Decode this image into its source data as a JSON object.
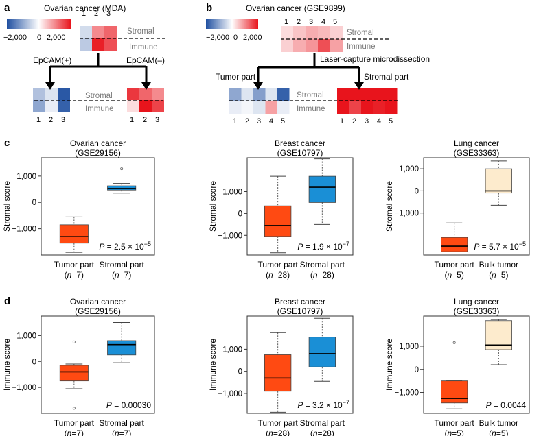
{
  "panel_labels": {
    "a": "a",
    "b": "b",
    "c": "c",
    "d": "d"
  },
  "colors": {
    "blue": "#1f4fa0",
    "red": "#e8141c",
    "white": "#ffffff",
    "orange": "#ff4a12",
    "sky": "#1a8fd6",
    "cream": "#fdebcd"
  },
  "colorbar": {
    "ticks": [
      "−2,000",
      "0",
      "2,000"
    ],
    "ticks_b": [
      "−2,000",
      "0",
      "2,000"
    ]
  },
  "panel_a": {
    "title": "Ovarian cancer (MDA)",
    "row_labels": [
      "Stromal",
      "Immune"
    ],
    "left_label": "EpCAM(+)",
    "right_label": "EpCAM(–)",
    "samples": [
      "1",
      "2",
      "3"
    ],
    "top_stromal": [
      -400,
      1000,
      1300
    ],
    "top_immune": [
      -600,
      1900,
      1500
    ],
    "left_stromal": [
      -700,
      -300,
      -1900
    ],
    "left_immune": [
      -1000,
      -200,
      -1800
    ],
    "right_stromal": [
      1700,
      1300,
      1000
    ],
    "right_immune": [
      300,
      2000,
      1600
    ]
  },
  "panel_b": {
    "title": "Ovarian cancer (GSE9899)",
    "row_labels": [
      "Stromal",
      "Immune"
    ],
    "process_label": "Laser-capture microdissection",
    "left_label": "Tumor part",
    "right_label": "Stromal part",
    "samples": [
      "1",
      "2",
      "3",
      "4",
      "5"
    ],
    "top_stromal": [
      300,
      500,
      700,
      600,
      400
    ],
    "top_immune": [
      400,
      700,
      900,
      1500,
      800
    ],
    "left_stromal": [
      -1000,
      -300,
      -1100,
      -300,
      -1800
    ],
    "left_immune": [
      -200,
      -100,
      -300,
      800,
      -200
    ],
    "right_stromal": [
      2200,
      2200,
      2200,
      2200,
      2200
    ],
    "right_immune": [
      2000,
      1600,
      2000,
      1900,
      2000
    ]
  },
  "chart_data": [
    {
      "type": "box",
      "panel": "c",
      "title": "Ovarian cancer",
      "subtitle": "(GSE29156)",
      "ylabel": "Stromal score",
      "ylim": [
        -2000,
        1700
      ],
      "yticks": [
        "1,000",
        "0",
        "−1,000"
      ],
      "ytick_values": [
        1000,
        0,
        -1000
      ],
      "categories": [
        "Tumor part",
        "Stromal part"
      ],
      "n_labels": [
        "7",
        "7"
      ],
      "p_prefix": "P = ",
      "p_value": "2.5 × 10",
      "p_exp": "−5",
      "boxes": [
        {
          "min": -1900,
          "q1": -1550,
          "median": -1300,
          "q3": -850,
          "max": -550,
          "color": "#ff4a12",
          "outliers": []
        },
        {
          "min": 350,
          "q1": 470,
          "median": 530,
          "q3": 630,
          "max": 720,
          "color": "#1a8fd6",
          "outliers": [
            1280
          ]
        }
      ]
    },
    {
      "type": "box",
      "panel": "c",
      "title": "Breast cancer",
      "subtitle": "(GSE10797)",
      "ylabel": "Stromal score",
      "ylim": [
        -1900,
        2550
      ],
      "yticks": [
        "1,000",
        "0",
        "−1,000"
      ],
      "ytick_values": [
        1000,
        0,
        -1000
      ],
      "categories": [
        "Tumor part",
        "Stromal part"
      ],
      "n_labels": [
        "28",
        "28"
      ],
      "p_prefix": "P = ",
      "p_value": "1.9 × 10",
      "p_exp": "−7",
      "boxes": [
        {
          "min": -1800,
          "q1": -1050,
          "median": -550,
          "q3": 350,
          "max": 1700,
          "color": "#ff4a12",
          "outliers": []
        },
        {
          "min": -500,
          "q1": 500,
          "median": 1200,
          "q3": 1700,
          "max": 2500,
          "color": "#1a8fd6",
          "outliers": []
        }
      ]
    },
    {
      "type": "box",
      "panel": "c",
      "title": "Lung cancer",
      "subtitle": "(GSE33363)",
      "ylabel": "Stromal score",
      "ylim": [
        -2900,
        1500
      ],
      "yticks": [
        "1,000",
        "0",
        "−1,000"
      ],
      "ytick_values": [
        1000,
        0,
        -1000
      ],
      "categories": [
        "Tumor part",
        "Bulk tumor"
      ],
      "n_labels": [
        "5",
        "5"
      ],
      "p_prefix": "P = ",
      "p_value": "5.7 × 10",
      "p_exp": "−5",
      "boxes": [
        {
          "min": -2750,
          "q1": -2750,
          "median": -2500,
          "q3": -2100,
          "max": -1450,
          "color": "#ff4a12",
          "outliers": []
        },
        {
          "min": -650,
          "q1": -100,
          "median": 0,
          "q3": 1000,
          "max": 1350,
          "color": "#fdebcd",
          "outliers": []
        }
      ]
    },
    {
      "type": "box",
      "panel": "d",
      "title": "Ovarian cancer",
      "subtitle": "(GSE29156)",
      "ylabel": "Immune score",
      "ylim": [
        -2000,
        1750
      ],
      "yticks": [
        "1,000",
        "0",
        "−1,000"
      ],
      "ytick_values": [
        1000,
        0,
        -1000
      ],
      "categories": [
        "Tumor part",
        "Stromal part"
      ],
      "n_labels": [
        "7",
        "7"
      ],
      "p_prefix": "P = ",
      "p_value": "0.00030",
      "p_exp": "",
      "boxes": [
        {
          "min": -1050,
          "q1": -750,
          "median": -400,
          "q3": -150,
          "max": -100,
          "color": "#ff4a12",
          "outliers": [
            750,
            -1800
          ]
        },
        {
          "min": -50,
          "q1": 250,
          "median": 650,
          "q3": 800,
          "max": 1500,
          "color": "#1a8fd6",
          "outliers": []
        }
      ]
    },
    {
      "type": "box",
      "panel": "d",
      "title": "Breast cancer",
      "subtitle": "(GSE10797)",
      "ylabel": "Immune score",
      "ylim": [
        -1900,
        2500
      ],
      "yticks": [
        "1,000",
        "0",
        "−1,000"
      ],
      "ytick_values": [
        1000,
        0,
        -1000
      ],
      "categories": [
        "Tumor part",
        "Stromal part"
      ],
      "n_labels": [
        "28",
        "28"
      ],
      "p_prefix": "P = ",
      "p_value": "3.2 × 10",
      "p_exp": "−7",
      "boxes": [
        {
          "min": -1850,
          "q1": -900,
          "median": -300,
          "q3": 750,
          "max": 1750,
          "color": "#ff4a12",
          "outliers": []
        },
        {
          "min": -450,
          "q1": 200,
          "median": 800,
          "q3": 1550,
          "max": 2400,
          "color": "#1a8fd6",
          "outliers": []
        }
      ]
    },
    {
      "type": "box",
      "panel": "d",
      "title": "Lung cancer",
      "subtitle": "(GSE33363)",
      "ylabel": "Immune score",
      "ylim": [
        -1900,
        2300
      ],
      "yticks": [
        "1,000",
        "0",
        "−1,000"
      ],
      "ytick_values": [
        1000,
        0,
        -1000
      ],
      "categories": [
        "Tumor part",
        "Bulk tumor"
      ],
      "n_labels": [
        "5",
        "5"
      ],
      "p_prefix": "P = ",
      "p_value": "0.0044",
      "p_exp": "",
      "boxes": [
        {
          "min": -1700,
          "q1": -1450,
          "median": -1250,
          "q3": -500,
          "max": -500,
          "color": "#ff4a12",
          "outliers": [
            1150
          ]
        },
        {
          "min": 200,
          "q1": 850,
          "median": 1050,
          "q3": 2100,
          "max": 2150,
          "color": "#fdebcd",
          "outliers": []
        }
      ]
    }
  ]
}
